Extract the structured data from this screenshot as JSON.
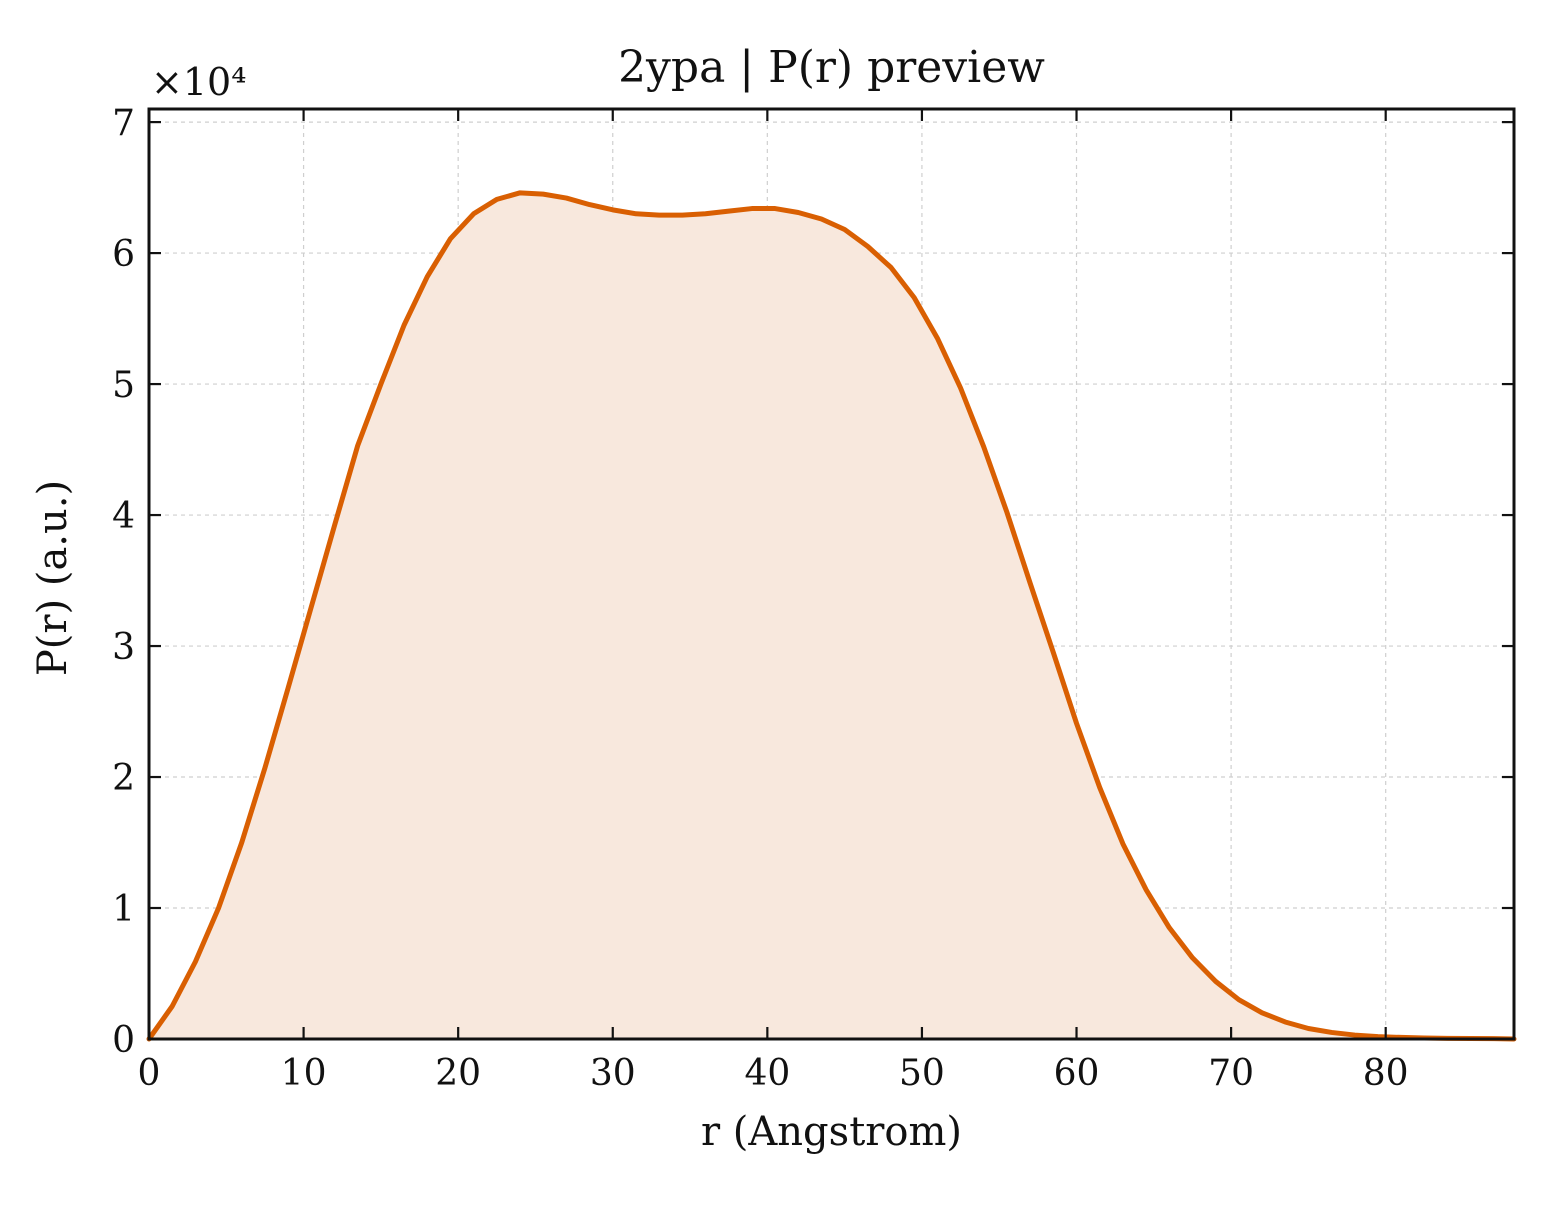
{
  "chart_data": {
    "type": "area",
    "title": "2ypa | P(r) preview",
    "xlabel": "r (Angstrom)",
    "ylabel": "P(r) (a.u.)",
    "y_multiplier_label": "×10⁴",
    "y_scale_factor": 10000,
    "xlim": [
      0,
      88.3
    ],
    "ylim": [
      0,
      71000
    ],
    "x_ticks": [
      0,
      10,
      20,
      30,
      40,
      50,
      60,
      70,
      80
    ],
    "y_ticks": [
      0,
      10000,
      20000,
      30000,
      40000,
      50000,
      60000,
      70000
    ],
    "y_tick_labels": [
      "0",
      "1",
      "2",
      "3",
      "4",
      "5",
      "6",
      "7"
    ],
    "x_tick_labels": [
      "0",
      "10",
      "20",
      "30",
      "40",
      "50",
      "60",
      "70",
      "80"
    ],
    "grid": true,
    "line_color": "#d95f02",
    "fill_color": "#f8e8dd",
    "series": [
      {
        "x": [
          0,
          1.5,
          3,
          4.5,
          6,
          7.5,
          9,
          10.5,
          12,
          13.5,
          15,
          16.5,
          18,
          19.5,
          21,
          22.5,
          24,
          25.5,
          27,
          28.5,
          30,
          31.5,
          33,
          34.5,
          36,
          37.5,
          39,
          40.5,
          42,
          43.5,
          45,
          46.5,
          48,
          49.5,
          51,
          52.5,
          54,
          55.5,
          57,
          58.5,
          60,
          61.5,
          63,
          64.5,
          66,
          67.5,
          69,
          70.5,
          72,
          73.5,
          75,
          76.5,
          78,
          79.5,
          81,
          82.5,
          84,
          85.5,
          87,
          88.3
        ],
        "y": [
          0,
          2500,
          5900,
          10000,
          15000,
          20700,
          26800,
          33000,
          39200,
          45300,
          50000,
          54500,
          58200,
          61100,
          63000,
          64100,
          64600,
          64500,
          64200,
          63700,
          63300,
          63000,
          62900,
          62900,
          63000,
          63200,
          63400,
          63400,
          63100,
          62600,
          61800,
          60500,
          58900,
          56600,
          53500,
          49700,
          45200,
          40200,
          34800,
          29500,
          24100,
          19200,
          14900,
          11400,
          8500,
          6200,
          4400,
          3000,
          2000,
          1300,
          800,
          500,
          300,
          180,
          120,
          80,
          50,
          40,
          30,
          0
        ]
      }
    ]
  }
}
